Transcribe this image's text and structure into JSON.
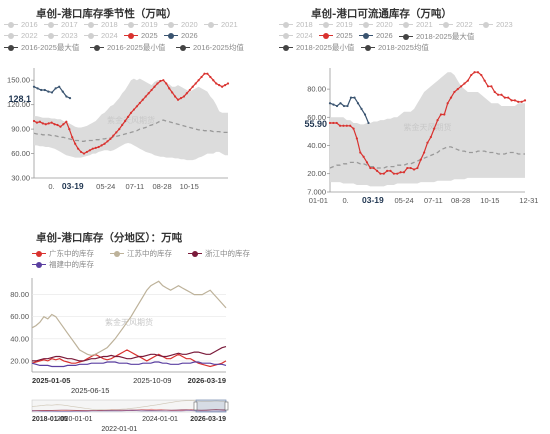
{
  "chart_data": [
    {
      "type": "line",
      "title": "卓创-港口库存季节性（万吨）",
      "legend": [
        {
          "name": "2016",
          "color": "#d0d0d0",
          "active": false
        },
        {
          "name": "2017",
          "color": "#d0d0d0",
          "active": false
        },
        {
          "name": "2018",
          "color": "#d0d0d0",
          "active": false
        },
        {
          "name": "2019",
          "color": "#d0d0d0",
          "active": false
        },
        {
          "name": "2020",
          "color": "#d0d0d0",
          "active": false
        },
        {
          "name": "2021",
          "color": "#d0d0d0",
          "active": false
        },
        {
          "name": "2022",
          "color": "#d0d0d0",
          "active": false
        },
        {
          "name": "2023",
          "color": "#d0d0d0",
          "active": false
        },
        {
          "name": "2024",
          "color": "#d0d0d0",
          "active": false
        },
        {
          "name": "2025",
          "color": "#d9322f",
          "active": true
        },
        {
          "name": "2026",
          "color": "#3a5470",
          "active": true
        },
        {
          "name": "2016-2025最大值",
          "color": "#444444",
          "active": true
        },
        {
          "name": "2016-2025最小值",
          "color": "#444444",
          "active": true
        },
        {
          "name": "2016-2025均值",
          "color": "#444444",
          "active": true
        }
      ],
      "y_ticks": [
        "150.00",
        "120.00",
        "90.00",
        "60.00",
        "30.00"
      ],
      "ylim": [
        30,
        165
      ],
      "x_ticks": [
        "0.",
        "03-19",
        "05-24",
        "07-11",
        "08-28",
        "10-15"
      ],
      "highlight_x": "03-19",
      "current_value": "128.1",
      "watermark": "紫金天风期货",
      "series_2025": [
        100,
        98,
        99,
        97,
        96,
        97,
        98,
        96,
        95,
        93,
        96,
        99,
        90,
        80,
        72,
        66,
        62,
        60,
        62,
        64,
        66,
        67,
        68,
        70,
        72,
        75,
        78,
        82,
        86,
        90,
        95,
        100,
        105,
        110,
        114,
        118,
        122,
        126,
        130,
        134,
        138,
        142,
        146,
        149,
        150,
        146,
        140,
        135,
        130,
        126,
        128,
        130,
        134,
        138,
        142,
        146,
        150,
        154,
        158,
        158,
        154,
        150,
        146,
        144,
        142,
        144,
        146
      ],
      "series_2026": [
        142,
        140,
        138,
        138,
        136,
        135,
        140,
        142,
        136,
        130,
        128
      ],
      "series_mean": [
        85,
        84,
        84,
        83,
        83,
        83,
        82,
        82,
        81,
        80,
        80,
        79,
        78,
        77,
        76,
        76,
        75,
        75,
        76,
        76,
        76,
        77,
        77,
        78,
        78,
        79,
        79,
        80,
        81,
        82,
        83,
        84,
        85,
        86,
        87,
        88,
        90,
        91,
        92,
        94,
        95,
        96,
        98,
        100,
        101,
        100,
        99,
        98,
        97,
        96,
        95,
        94,
        93,
        92,
        91,
        90,
        89,
        89,
        88,
        88,
        88,
        87,
        87,
        87,
        86,
        86,
        86
      ],
      "band_max": [
        106,
        106,
        105,
        104,
        104,
        104,
        103,
        103,
        102,
        102,
        100,
        99,
        97,
        95,
        93,
        92,
        92,
        93,
        94,
        96,
        98,
        100,
        104,
        108,
        110,
        114,
        118,
        120,
        124,
        128,
        134,
        138,
        144,
        150,
        152,
        150,
        152,
        150,
        148,
        146,
        144,
        148,
        150,
        150,
        148,
        146,
        145,
        142,
        142,
        144,
        142,
        140,
        138,
        136,
        138,
        140,
        142,
        140,
        138,
        136,
        130,
        126,
        120,
        112,
        110,
        110,
        110
      ],
      "band_min": [
        70,
        70,
        69,
        69,
        68,
        68,
        67,
        66,
        64,
        62,
        60,
        58,
        57,
        56,
        55,
        55,
        55,
        56,
        57,
        58,
        60,
        60,
        62,
        63,
        64,
        64,
        63,
        64,
        66,
        68,
        70,
        72,
        73,
        72,
        70,
        68,
        66,
        64,
        62,
        61,
        60,
        58,
        57,
        56,
        56,
        55,
        55,
        55,
        54,
        54,
        53,
        53,
        52,
        52,
        52,
        53,
        55,
        56,
        58,
        60,
        60,
        60,
        62,
        62,
        60,
        58,
        58
      ]
    },
    {
      "type": "line",
      "title": "卓创-港口可流通库存（万吨）",
      "legend": [
        {
          "name": "2018",
          "color": "#d0d0d0",
          "active": false
        },
        {
          "name": "2019",
          "color": "#d0d0d0",
          "active": false
        },
        {
          "name": "2020",
          "color": "#d0d0d0",
          "active": false
        },
        {
          "name": "2021",
          "color": "#d0d0d0",
          "active": false
        },
        {
          "name": "2022",
          "color": "#d0d0d0",
          "active": false
        },
        {
          "name": "2023",
          "color": "#d0d0d0",
          "active": false
        },
        {
          "name": "2024",
          "color": "#d0d0d0",
          "active": false
        },
        {
          "name": "2025",
          "color": "#d9322f",
          "active": true
        },
        {
          "name": "2026",
          "color": "#3a5470",
          "active": true
        },
        {
          "name": "2018-2025最大值",
          "color": "#444444",
          "active": true
        },
        {
          "name": "2018-2025最小值",
          "color": "#444444",
          "active": true
        },
        {
          "name": "2018-2025均值",
          "color": "#444444",
          "active": true
        }
      ],
      "y_ticks": [
        "80.00",
        "60.00",
        "40.00",
        "20.00",
        "7.000"
      ],
      "ylim": [
        7,
        95
      ],
      "x_ticks": [
        "01-01",
        "0.",
        "03-19",
        "05-24",
        "07-11",
        "08-28",
        "10-15",
        "12-31"
      ],
      "highlight_x": "03-19",
      "current_value": "55.90",
      "watermark": "紫金天风期货",
      "series_2025": [
        56,
        56,
        56,
        54,
        54,
        54,
        54,
        52,
        45,
        35,
        32,
        28,
        24,
        24,
        22,
        20,
        20,
        22,
        22,
        20,
        20,
        21,
        21,
        24,
        24,
        23,
        24,
        30,
        35,
        42,
        46,
        52,
        58,
        62,
        62,
        70,
        74,
        78,
        80,
        82,
        84,
        86,
        90,
        92,
        92,
        90,
        86,
        82,
        82,
        78,
        76,
        76,
        74,
        74,
        72,
        72,
        71,
        71,
        72
      ],
      "series_2026": [
        70,
        69,
        68,
        70,
        68,
        68,
        74,
        74,
        70,
        66,
        62,
        56
      ],
      "series_mean": [
        24,
        25,
        26,
        26,
        27,
        27,
        28,
        28,
        28,
        27,
        27,
        26,
        25,
        25,
        24,
        24,
        24,
        25,
        25,
        25,
        26,
        26,
        26,
        27,
        27,
        28,
        29,
        30,
        31,
        32,
        33,
        34,
        35,
        37,
        38,
        39,
        39,
        38,
        37,
        36,
        36,
        35,
        35,
        35,
        36,
        36,
        36,
        35,
        35,
        35,
        34,
        34,
        34,
        35,
        35,
        35,
        34,
        34,
        34
      ],
      "band_max": [
        60,
        60,
        60,
        60,
        60,
        58,
        58,
        56,
        56,
        55,
        55,
        56,
        56,
        57,
        57,
        58,
        58,
        59,
        59,
        60,
        60,
        62,
        64,
        64,
        64,
        66,
        70,
        74,
        78,
        80,
        82,
        84,
        86,
        88,
        90,
        92,
        92,
        90,
        86,
        82,
        80,
        78,
        78,
        78,
        78,
        76,
        74,
        72,
        70,
        70,
        70,
        68,
        68,
        68,
        68,
        68,
        70,
        70,
        70
      ],
      "band_min": [
        14,
        14,
        14,
        14,
        13,
        13,
        13,
        13,
        12,
        12,
        12,
        12,
        11,
        11,
        11,
        11,
        11,
        12,
        12,
        12,
        13,
        13,
        13,
        13,
        13,
        13,
        13,
        14,
        14,
        14,
        14,
        14,
        15,
        15,
        15,
        15,
        15,
        16,
        16,
        16,
        16,
        17,
        17,
        17,
        17,
        17,
        17,
        17,
        17,
        17,
        17,
        17,
        17,
        17,
        17,
        17,
        17,
        17,
        17
      ]
    },
    {
      "type": "line",
      "title": "卓创-港口库存（分地区）：万吨",
      "legend": [
        {
          "name": "广东中的库存",
          "color": "#d9322f"
        },
        {
          "name": "江苏中的库存",
          "color": "#bdb29a"
        },
        {
          "name": "浙江中的库存",
          "color": "#7a1a3a"
        },
        {
          "name": "福建中的库存",
          "color": "#5a3fa0"
        }
      ],
      "y_ticks": [
        "80.00",
        "60.00",
        "40.00",
        "20.00"
      ],
      "ylim": [
        10,
        95
      ],
      "x_ticks": [
        "2025-01-05",
        "2025-06-15",
        "2025-10-09",
        "2026-03-19"
      ],
      "nav_x_ticks": [
        "2018-01-05",
        "2020-01-01",
        "2022-01-01",
        "2024-01-01",
        "2026-03-19"
      ],
      "watermark": "紫金天风期货",
      "series": [
        {
          "name": "广东中的库存",
          "color": "#d9322f",
          "values": [
            18,
            19,
            20,
            21,
            20,
            22,
            21,
            22,
            20,
            19,
            18,
            18,
            19,
            20,
            22,
            24,
            26,
            24,
            22,
            21,
            22,
            24,
            26,
            28,
            30,
            28,
            26,
            24,
            22,
            20,
            22,
            24,
            26,
            24,
            22,
            22,
            24,
            26,
            24,
            22,
            22,
            20,
            18,
            17,
            16,
            15,
            16,
            17,
            18,
            20
          ]
        },
        {
          "name": "江苏中的库存",
          "color": "#bdb29a",
          "values": [
            50,
            52,
            55,
            60,
            58,
            62,
            60,
            55,
            50,
            45,
            40,
            35,
            30,
            28,
            26,
            25,
            26,
            28,
            30,
            32,
            36,
            40,
            45,
            50,
            55,
            60,
            66,
            72,
            78,
            84,
            88,
            90,
            92,
            88,
            86,
            84,
            86,
            88,
            86,
            84,
            82,
            80,
            80,
            80,
            82,
            84,
            80,
            76,
            72,
            68
          ]
        },
        {
          "name": "浙江中的库存",
          "color": "#7a1a3a",
          "values": [
            20,
            20,
            21,
            22,
            22,
            23,
            24,
            24,
            23,
            22,
            22,
            21,
            20,
            20,
            21,
            22,
            22,
            23,
            24,
            24,
            25,
            24,
            24,
            23,
            22,
            22,
            23,
            24,
            24,
            25,
            26,
            26,
            25,
            24,
            24,
            25,
            26,
            27,
            26,
            26,
            27,
            28,
            28,
            27,
            26,
            26,
            28,
            30,
            32,
            33
          ]
        },
        {
          "name": "福建中的库存",
          "color": "#5a3fa0",
          "values": [
            18,
            17,
            16,
            16,
            16,
            15,
            15,
            15,
            15,
            16,
            16,
            16,
            17,
            17,
            17,
            18,
            18,
            18,
            18,
            19,
            19,
            19,
            18,
            18,
            18,
            17,
            17,
            17,
            18,
            18,
            18,
            19,
            19,
            18,
            18,
            17,
            17,
            17,
            18,
            18,
            18,
            19,
            19,
            18,
            18,
            18,
            17,
            17,
            17,
            16
          ]
        }
      ]
    }
  ]
}
